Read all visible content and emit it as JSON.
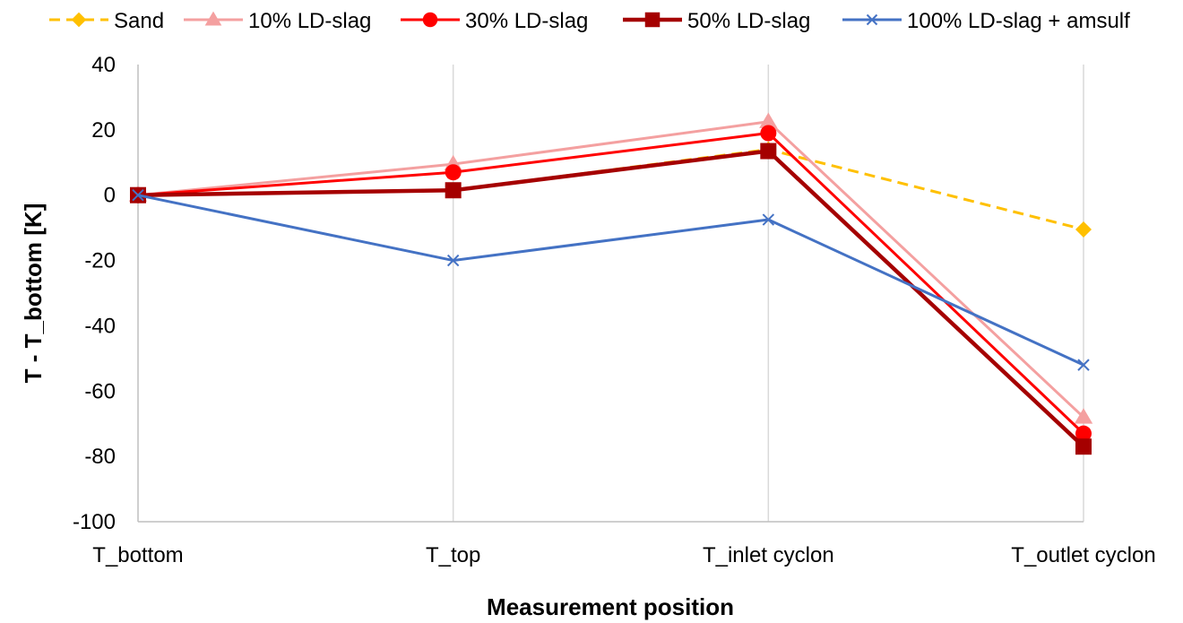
{
  "chart_data": {
    "type": "line",
    "title": "",
    "xlabel": "Measurement position",
    "ylabel": "T - T_bottom [K]",
    "categories": [
      "T_bottom",
      "T_top",
      "T_inlet cyclon",
      "T_outlet cyclon"
    ],
    "ylim": [
      -100,
      40
    ],
    "yticks": [
      40,
      20,
      0,
      -20,
      -40,
      -60,
      -80,
      -100
    ],
    "grid": "vertical",
    "legend_position": "top",
    "series": [
      {
        "name": "Sand",
        "values": [
          0,
          1.5,
          14,
          -10.5
        ],
        "color": "#FFC000",
        "dash": true,
        "marker": "diamond"
      },
      {
        "name": "10% LD-slag",
        "values": [
          0,
          9.5,
          22.5,
          -68
        ],
        "color": "#F4A0A0",
        "dash": false,
        "marker": "triangle"
      },
      {
        "name": "30% LD-slag",
        "values": [
          0,
          7,
          19,
          -73
        ],
        "color": "#FF0000",
        "dash": false,
        "marker": "circle"
      },
      {
        "name": "50% LD-slag",
        "values": [
          0,
          1.5,
          13.5,
          -77
        ],
        "color": "#A50000",
        "dash": false,
        "marker": "square"
      },
      {
        "name": "100% LD-slag + amsulf",
        "values": [
          0,
          -20,
          -7.5,
          -52
        ],
        "color": "#4472C4",
        "dash": false,
        "marker": "x"
      }
    ]
  }
}
